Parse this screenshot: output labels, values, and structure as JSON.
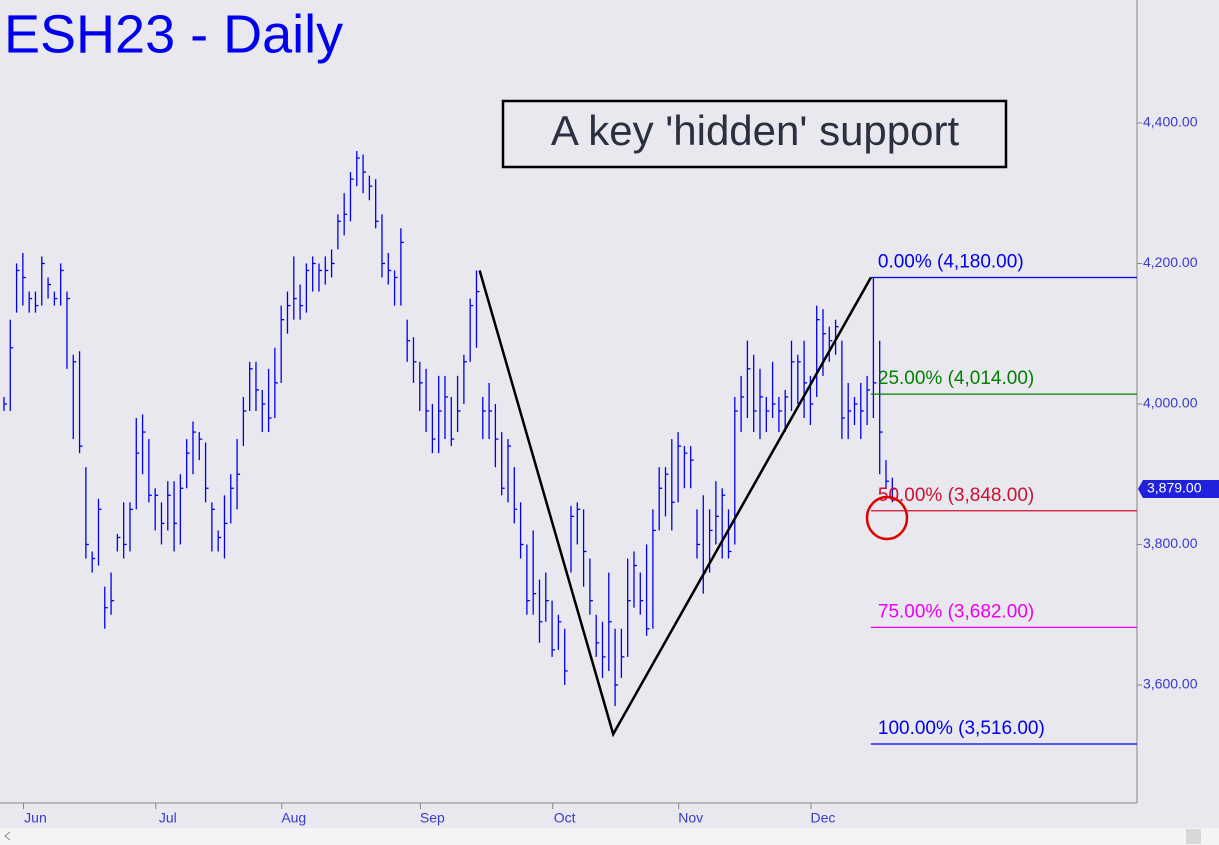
{
  "chart_data": {
    "type": "ohlc",
    "title": "ESH23 - Daily",
    "annotation": "A key 'hidden' support",
    "color": "#0000ee",
    "xlim": [
      -0.63,
      179.84
    ],
    "ylim": [
      3432,
      4575
    ],
    "xticks": [
      {
        "value": 5,
        "label": "Jun"
      },
      {
        "value": 26,
        "label": "Jul"
      },
      {
        "value": 46,
        "label": "Aug"
      },
      {
        "value": 68,
        "label": "Sep"
      },
      {
        "value": 89,
        "label": "Oct"
      },
      {
        "value": 109,
        "label": "Nov"
      },
      {
        "value": 130,
        "label": "Dec"
      }
    ],
    "yticks": [
      {
        "value": 3600,
        "label": "3,600.00"
      },
      {
        "value": 3800,
        "label": "3,800.00"
      },
      {
        "value": 4000,
        "label": "4,000.00"
      },
      {
        "value": 4200,
        "label": "4,200.00"
      },
      {
        "value": 4400,
        "label": "4,400.00"
      }
    ],
    "last_price": {
      "value": 3879,
      "label": "3,879.00"
    },
    "high": [
      4010,
      4120,
      4200,
      4215,
      4160,
      4160,
      4210,
      4180,
      4160,
      4200,
      4160,
      4070,
      4075,
      3910,
      3790,
      3865,
      3740,
      3760,
      3815,
      3860,
      3860,
      3980,
      3985,
      3950,
      3880,
      3860,
      3890,
      3890,
      3900,
      3950,
      3975,
      3960,
      3945,
      3860,
      3820,
      3870,
      3900,
      3950,
      4010,
      4060,
      4060,
      4020,
      4050,
      4080,
      4140,
      4160,
      4210,
      4170,
      4200,
      4210,
      4200,
      4210,
      4220,
      4270,
      4300,
      4330,
      4360,
      4355,
      4325,
      4320,
      4270,
      4215,
      4190,
      4250,
      4120,
      4095,
      4060,
      4050,
      4000,
      4040,
      4040,
      4010,
      4040,
      4070,
      4150,
      4190,
      4010,
      4030,
      4000,
      3960,
      3950,
      3910,
      3860,
      3800,
      3820,
      3750,
      3760,
      3720,
      3700,
      3680,
      3855,
      3860,
      3850,
      3780,
      3700,
      3690,
      3760,
      3680,
      3680,
      3780,
      3790,
      3760,
      3800,
      3850,
      3910,
      3910,
      3950,
      3960,
      3940,
      3940,
      3850,
      3870,
      3850,
      3890,
      3880,
      3850,
      4010,
      4040,
      4090,
      4070,
      4050,
      4010,
      4060,
      4010,
      4020,
      4090,
      4070,
      4090,
      4040,
      4140,
      4135,
      4110,
      4120,
      4090,
      4030,
      4010,
      4030,
      4040,
      4180,
      4090,
      3920,
      3895
    ],
    "low": [
      3990,
      3990,
      4130,
      4140,
      4130,
      4130,
      4140,
      4150,
      4140,
      4140,
      4050,
      3950,
      3930,
      3780,
      3760,
      3770,
      3680,
      3700,
      3790,
      3780,
      3790,
      3850,
      3900,
      3860,
      3820,
      3800,
      3820,
      3790,
      3800,
      3880,
      3900,
      3920,
      3860,
      3790,
      3790,
      3780,
      3830,
      3850,
      3940,
      3990,
      3990,
      3960,
      3960,
      3980,
      4030,
      4100,
      4120,
      4120,
      4130,
      4160,
      4160,
      4170,
      4180,
      4220,
      4240,
      4260,
      4310,
      4300,
      4290,
      4250,
      4180,
      4170,
      4140,
      4140,
      4060,
      4030,
      3990,
      3960,
      3930,
      3930,
      3950,
      3940,
      3960,
      4000,
      4060,
      4080,
      3950,
      3950,
      3910,
      3870,
      3860,
      3830,
      3780,
      3700,
      3700,
      3660,
      3690,
      3640,
      3650,
      3600,
      3760,
      3800,
      3740,
      3700,
      3640,
      3610,
      3620,
      3570,
      3610,
      3640,
      3710,
      3700,
      3670,
      3680,
      3820,
      3840,
      3820,
      3860,
      3880,
      3880,
      3780,
      3730,
      3760,
      3800,
      3780,
      3780,
      3800,
      3960,
      3980,
      3960,
      3950,
      3960,
      3980,
      3960,
      3960,
      3990,
      4000,
      3980,
      3970,
      4010,
      4040,
      4060,
      4070,
      3950,
      3950,
      3970,
      3950,
      3970,
      3980,
      3900,
      3880,
      3860
    ],
    "close": [
      4000,
      4080,
      4190,
      4180,
      4150,
      4140,
      4200,
      4170,
      4150,
      4190,
      4150,
      4060,
      3940,
      3800,
      3780,
      3850,
      3710,
      3720,
      3810,
      3800,
      3850,
      3930,
      3960,
      3870,
      3870,
      3830,
      3870,
      3830,
      3880,
      3930,
      3960,
      3950,
      3880,
      3850,
      3810,
      3830,
      3880,
      3900,
      3990,
      4050,
      4020,
      4000,
      3980,
      4030,
      4120,
      4140,
      4150,
      4140,
      4190,
      4200,
      4190,
      4190,
      4200,
      4260,
      4270,
      4320,
      4350,
      4330,
      4310,
      4260,
      4200,
      4190,
      4180,
      4230,
      4090,
      4060,
      4030,
      3990,
      3950,
      3990,
      4010,
      3950,
      3990,
      4060,
      4140,
      4160,
      3990,
      3990,
      3950,
      3880,
      3940,
      3850,
      3800,
      3720,
      3730,
      3690,
      3720,
      3650,
      3690,
      3620,
      3840,
      3850,
      3790,
      3720,
      3660,
      3640,
      3690,
      3600,
      3640,
      3720,
      3770,
      3720,
      3680,
      3820,
      3880,
      3900,
      3860,
      3940,
      3930,
      3920,
      3800,
      3760,
      3820,
      3840,
      3870,
      3790,
      3990,
      4010,
      4050,
      3990,
      4010,
      3990,
      4000,
      3990,
      4010,
      4060,
      4060,
      4030,
      4000,
      4120,
      4100,
      4090,
      4110,
      3980,
      3990,
      4000,
      3990,
      4020,
      4030,
      3960,
      3890,
      3879
    ],
    "pattern": {
      "x": [
        75.5,
        96.7,
        137.6
      ],
      "values": [
        4190,
        3530,
        4180
      ],
      "color": "#000000"
    },
    "fib_start": 137.6,
    "fib_levels": [
      {
        "label": "0.00% (4,180.00)",
        "value": 4180,
        "color": "#0000ee"
      },
      {
        "label": "25.00% (4,014.00)",
        "value": 4014,
        "color": "#008000"
      },
      {
        "label": "50.00% (3,848.00)",
        "value": 3848,
        "color": "#cc1133"
      },
      {
        "label": "75.00% (3,682.00)",
        "value": 3682,
        "color": "#ee00ee"
      },
      {
        "label": "100.00% (3,516.00)",
        "value": 3516,
        "color": "#0000ee"
      }
    ]
  }
}
